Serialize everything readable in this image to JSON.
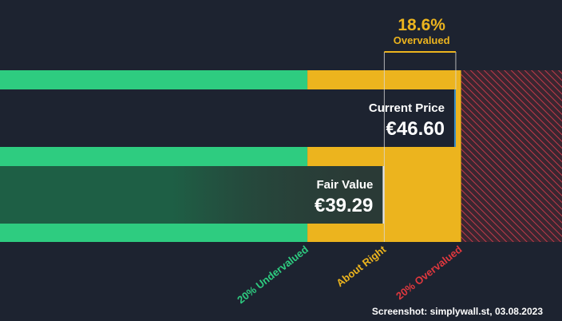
{
  "chart_data": {
    "type": "bar",
    "title": "",
    "currency": "€",
    "xlim": [
      0,
      57.46
    ],
    "zones": [
      {
        "name": "20% Undervalued",
        "from": 0,
        "to": 31.43,
        "color": "#2ecc80"
      },
      {
        "name": "About Right",
        "from": 31.43,
        "to": 47.15,
        "color": "#ecb41e"
      },
      {
        "name": "20% Overvalued",
        "from": 47.15,
        "to": 57.46,
        "color": "#e0383e"
      }
    ],
    "bars": [
      {
        "label": "Current Price",
        "value": 46.6,
        "display": "€46.60"
      },
      {
        "label": "Fair Value",
        "value": 39.29,
        "display": "€39.29"
      }
    ],
    "overvaluation": {
      "percent_text": "18.6%",
      "status": "Overvalued",
      "color": "#ecb41e"
    },
    "zone_labels": [
      {
        "text": "20% Undervalued",
        "color": "#2ecc80"
      },
      {
        "text": "About Right",
        "color": "#ecb41e"
      },
      {
        "text": "20% Overvalued",
        "color": "#e0383e"
      }
    ]
  },
  "footer": {
    "credit": "Screenshot: simplywall.st, 03.08.2023"
  }
}
